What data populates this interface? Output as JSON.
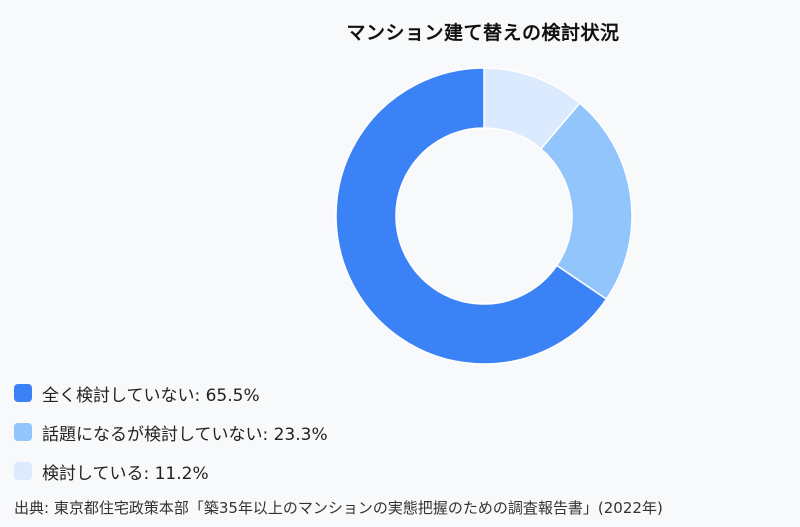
{
  "chart_data": {
    "type": "pie",
    "title": "マンション建て替えの検討状況",
    "categories": [
      "全く検討していない",
      "話題になるが検討していない",
      "検討している"
    ],
    "values": [
      65.5,
      23.3,
      11.2
    ],
    "unit": "%",
    "colors": [
      "#3b82f6",
      "#93c5fd",
      "#dbeafe"
    ],
    "legend_labels": [
      "全く検討していない: 65.5%",
      "話題になるが検討していない: 23.3%",
      "検討している: 11.2%"
    ],
    "legend_position": "bottom-left",
    "donut": true
  },
  "source": "出典: 東京都住宅政策本部「築35年以上のマンションの実態把握のための調査報告書」(2022年)"
}
